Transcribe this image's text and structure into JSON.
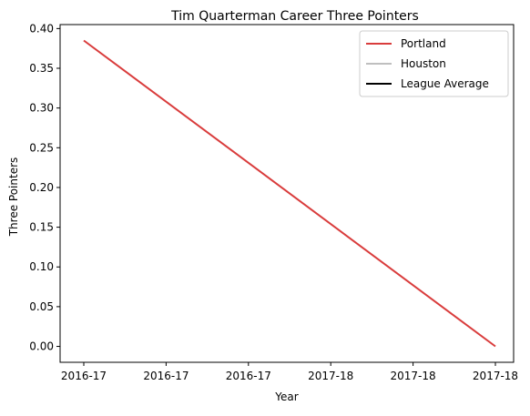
{
  "chart_data": {
    "type": "line",
    "title": "Tim Quarterman Career Three Pointers",
    "xlabel": "Year",
    "ylabel": "Three Pointers",
    "x_tick_labels": [
      "2016-17",
      "2016-17",
      "2016-17",
      "2017-18",
      "2017-18",
      "2017-18"
    ],
    "y_ticks": [
      "0.00",
      "0.05",
      "0.10",
      "0.15",
      "0.20",
      "0.25",
      "0.30",
      "0.35",
      "0.40"
    ],
    "ylim": [
      -0.02,
      0.405
    ],
    "grid": false,
    "legend_position": "top-right",
    "series": [
      {
        "name": "Portland",
        "color": "#d93c3c",
        "points": [
          {
            "x": "2016-17",
            "y": 0.385
          },
          {
            "x": "2017-18",
            "y": 0.0
          }
        ]
      },
      {
        "name": "Houston",
        "color": "#bfbfbf",
        "points": []
      },
      {
        "name": "League Average",
        "color": "#000000",
        "points": []
      }
    ]
  }
}
